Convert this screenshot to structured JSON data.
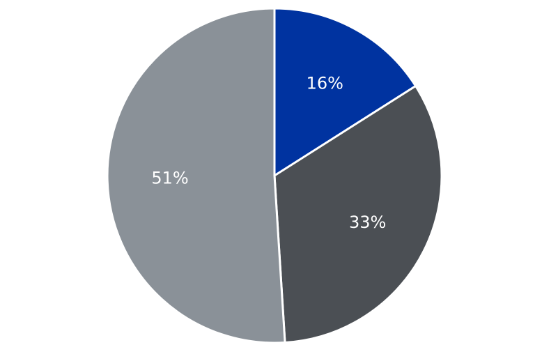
{
  "chart_data": {
    "type": "pie",
    "slices": [
      {
        "value": 16,
        "label": "16%",
        "color": "#0033a0"
      },
      {
        "value": 33,
        "label": "33%",
        "color": "#4b4f54"
      },
      {
        "value": 51,
        "label": "51%",
        "color": "#8a9198"
      }
    ],
    "start_angle_degrees": 0,
    "direction": "clockwise",
    "separator_color": "#ffffff",
    "legend": "none"
  }
}
